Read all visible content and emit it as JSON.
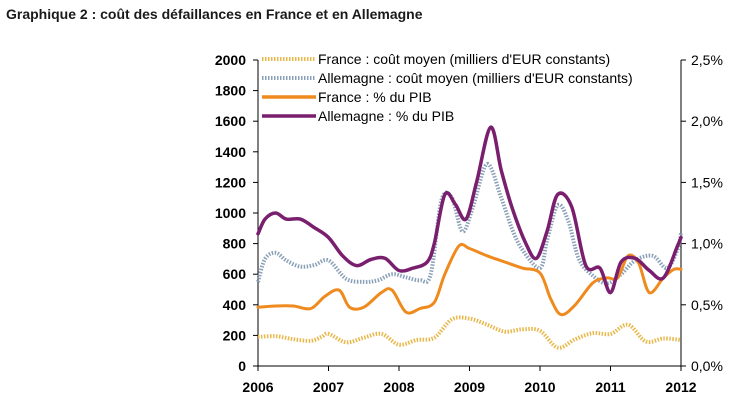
{
  "chart_data": {
    "type": "line",
    "title": "Graphique 2 : coût des défaillances en France et en Allemagne",
    "x_axis": {
      "ticks": [
        "2006",
        "2007",
        "2008",
        "2009",
        "2010",
        "2011",
        "2012"
      ],
      "range": [
        2006,
        2012
      ]
    },
    "y_left": {
      "range": [
        0,
        2000
      ],
      "ticks": [
        "0",
        "200",
        "400",
        "600",
        "800",
        "1000",
        "1200",
        "1400",
        "1600",
        "1800",
        "2000"
      ]
    },
    "y_right": {
      "range": [
        0,
        2.5
      ],
      "ticks": [
        "0,0%",
        "0,5%",
        "1,0%",
        "1,5%",
        "2,0%",
        "2,5%"
      ]
    },
    "grid": false,
    "legend_position": "top",
    "series": [
      {
        "name": "France : coût moyen (milliers d'EUR constants)",
        "axis": "left",
        "color": "#e8b84a",
        "style": "dotted",
        "x": [
          2006.0,
          2006.25,
          2006.5,
          2006.75,
          2006.9,
          2007.0,
          2007.25,
          2007.5,
          2007.75,
          2008.0,
          2008.25,
          2008.5,
          2008.75,
          2009.0,
          2009.25,
          2009.5,
          2009.75,
          2010.0,
          2010.25,
          2010.5,
          2010.75,
          2011.0,
          2011.25,
          2011.5,
          2011.75,
          2012.0
        ],
        "y": [
          190,
          195,
          175,
          165,
          190,
          210,
          155,
          185,
          210,
          140,
          170,
          185,
          305,
          310,
          270,
          225,
          240,
          230,
          120,
          175,
          215,
          210,
          270,
          160,
          180,
          170
        ]
      },
      {
        "name": "Allemagne : coût moyen (milliers d'EUR constants)",
        "axis": "left",
        "color": "#8aa0b8",
        "style": "dotted",
        "x": [
          2006.0,
          2006.1,
          2006.25,
          2006.4,
          2006.6,
          2006.8,
          2007.0,
          2007.25,
          2007.5,
          2007.7,
          2007.9,
          2008.1,
          2008.3,
          2008.45,
          2008.6,
          2008.75,
          2008.9,
          2009.05,
          2009.25,
          2009.45,
          2009.6,
          2009.75,
          2010.0,
          2010.1,
          2010.25,
          2010.4,
          2010.55,
          2010.75,
          2010.95,
          2011.15,
          2011.35,
          2011.6,
          2011.8,
          2011.95,
          2012.0
        ],
        "y": [
          550,
          700,
          740,
          690,
          650,
          660,
          690,
          570,
          550,
          560,
          600,
          580,
          560,
          600,
          1080,
          1100,
          880,
          1040,
          1320,
          1100,
          900,
          760,
          640,
          820,
          1050,
          950,
          700,
          590,
          540,
          600,
          690,
          720,
          640,
          760,
          870
        ]
      },
      {
        "name": "France : % du PIB",
        "axis": "right",
        "color": "#ef8a1e",
        "style": "solid",
        "x": [
          2006.0,
          2006.25,
          2006.5,
          2006.75,
          2006.95,
          2007.15,
          2007.3,
          2007.5,
          2007.75,
          2007.9,
          2008.1,
          2008.3,
          2008.5,
          2008.65,
          2008.85,
          2009.0,
          2009.25,
          2009.5,
          2009.75,
          2010.0,
          2010.15,
          2010.3,
          2010.5,
          2010.75,
          2010.95,
          2011.1,
          2011.25,
          2011.4,
          2011.55,
          2011.75,
          2011.9,
          2012.0
        ],
        "y": [
          0.48,
          0.49,
          0.49,
          0.47,
          0.57,
          0.62,
          0.48,
          0.48,
          0.6,
          0.62,
          0.44,
          0.47,
          0.52,
          0.75,
          0.98,
          0.96,
          0.9,
          0.85,
          0.8,
          0.76,
          0.55,
          0.42,
          0.5,
          0.68,
          0.72,
          0.72,
          0.9,
          0.84,
          0.6,
          0.72,
          0.79,
          0.79
        ]
      },
      {
        "name": "Allemagne : % du PIB",
        "axis": "right",
        "color": "#7a1e6e",
        "style": "solid",
        "x": [
          2006.0,
          2006.1,
          2006.25,
          2006.4,
          2006.6,
          2006.8,
          2007.0,
          2007.2,
          2007.4,
          2007.6,
          2007.8,
          2008.0,
          2008.2,
          2008.4,
          2008.5,
          2008.65,
          2008.8,
          2008.95,
          2009.1,
          2009.3,
          2009.45,
          2009.6,
          2009.8,
          2009.95,
          2010.1,
          2010.25,
          2010.45,
          2010.65,
          2010.85,
          2011.0,
          2011.15,
          2011.35,
          2011.55,
          2011.75,
          2011.95,
          2012.0
        ],
        "y": [
          1.08,
          1.2,
          1.25,
          1.2,
          1.2,
          1.13,
          1.05,
          0.9,
          0.82,
          0.87,
          0.88,
          0.78,
          0.8,
          0.85,
          1.0,
          1.4,
          1.32,
          1.2,
          1.5,
          1.95,
          1.6,
          1.3,
          1.0,
          0.88,
          1.1,
          1.4,
          1.3,
          0.82,
          0.8,
          0.6,
          0.85,
          0.88,
          0.78,
          0.72,
          0.98,
          1.05
        ]
      }
    ]
  }
}
